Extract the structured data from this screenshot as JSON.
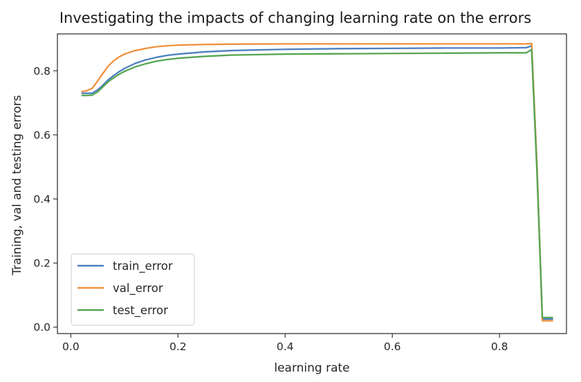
{
  "chart_data": {
    "type": "line",
    "title": "Investigating the impacts of changing learning rate on the errors",
    "xlabel": "learning rate",
    "ylabel": "Training, val and testing errors",
    "xlim": [
      -0.025,
      0.925
    ],
    "ylim": [
      -0.02,
      0.915
    ],
    "xticks": [
      0.0,
      0.2,
      0.4,
      0.6,
      0.8
    ],
    "xtick_labels": [
      "0.0",
      "0.2",
      "0.4",
      "0.6",
      "0.8"
    ],
    "yticks": [
      0.0,
      0.2,
      0.4,
      0.6,
      0.8
    ],
    "ytick_labels": [
      "0.0",
      "0.2",
      "0.4",
      "0.6",
      "0.8"
    ],
    "grid": false,
    "legend_position": "lower-left",
    "x": [
      0.02,
      0.03,
      0.04,
      0.05,
      0.06,
      0.07,
      0.08,
      0.09,
      0.1,
      0.12,
      0.14,
      0.16,
      0.18,
      0.2,
      0.25,
      0.3,
      0.4,
      0.5,
      0.6,
      0.7,
      0.8,
      0.85,
      0.86,
      0.87,
      0.88,
      0.89,
      0.9
    ],
    "series": [
      {
        "name": "train_error",
        "color": "#4c7fbf",
        "values": [
          0.73,
          0.73,
          0.73,
          0.74,
          0.755,
          0.772,
          0.785,
          0.797,
          0.807,
          0.823,
          0.834,
          0.842,
          0.848,
          0.852,
          0.859,
          0.863,
          0.867,
          0.869,
          0.87,
          0.871,
          0.871,
          0.872,
          0.878,
          0.5,
          0.025,
          0.025,
          0.025
        ]
      },
      {
        "name": "val_error",
        "color": "#f0913d",
        "values": [
          0.735,
          0.738,
          0.745,
          0.768,
          0.792,
          0.815,
          0.831,
          0.843,
          0.852,
          0.863,
          0.87,
          0.875,
          0.878,
          0.88,
          0.882,
          0.883,
          0.884,
          0.884,
          0.884,
          0.884,
          0.884,
          0.884,
          0.885,
          0.5,
          0.02,
          0.02,
          0.02
        ]
      },
      {
        "name": "test_error",
        "color": "#56a552",
        "values": [
          0.723,
          0.723,
          0.724,
          0.734,
          0.75,
          0.766,
          0.778,
          0.789,
          0.798,
          0.812,
          0.822,
          0.83,
          0.835,
          0.839,
          0.845,
          0.849,
          0.852,
          0.853,
          0.854,
          0.855,
          0.856,
          0.856,
          0.866,
          0.48,
          0.03,
          0.03,
          0.03
        ]
      }
    ]
  }
}
